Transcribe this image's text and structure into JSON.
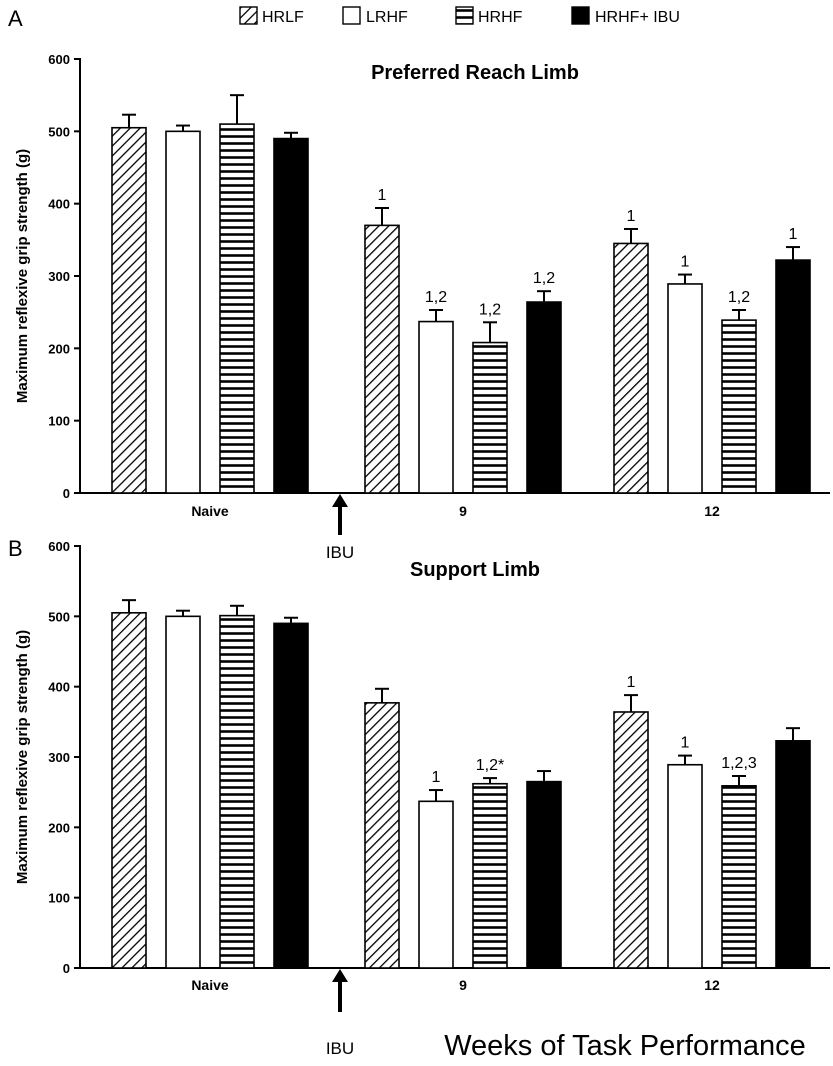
{
  "legend": [
    {
      "name": "HRLF",
      "pattern": "diagonal"
    },
    {
      "name": "LRHF",
      "pattern": "white"
    },
    {
      "name": "HRHF",
      "pattern": "horizontal"
    },
    {
      "name": "HRHF+ IBU",
      "pattern": "black"
    }
  ],
  "intervention_marker": {
    "label": "IBU"
  },
  "shared_xlabel": "Weeks of Task  Performance",
  "chart_data": [
    {
      "type": "bar",
      "panel": "A",
      "title": "Preferred Reach Limb",
      "ylabel": "Maximum reflexive grip strength (g)",
      "xlabel": "",
      "ylim": [
        0,
        600
      ],
      "yticks": [
        0,
        100,
        200,
        300,
        400,
        500,
        600
      ],
      "categories": [
        "Naive",
        "9",
        "12"
      ],
      "series": [
        {
          "name": "HRLF",
          "values": [
            505,
            370,
            345
          ],
          "errors": [
            18,
            24,
            20
          ],
          "annotations": [
            "",
            "1",
            "1"
          ]
        },
        {
          "name": "LRHF",
          "values": [
            500,
            237,
            289
          ],
          "errors": [
            8,
            16,
            13
          ],
          "annotations": [
            "",
            "1,2",
            "1"
          ]
        },
        {
          "name": "HRHF",
          "values": [
            510,
            208,
            239
          ],
          "errors": [
            40,
            28,
            14
          ],
          "annotations": [
            "",
            "1,2",
            "1,2"
          ]
        },
        {
          "name": "HRHF+ IBU",
          "values": [
            490,
            264,
            322
          ],
          "errors": [
            8,
            15,
            18
          ],
          "annotations": [
            "",
            "1,2",
            "1"
          ]
        }
      ]
    },
    {
      "type": "bar",
      "panel": "B",
      "title": "Support Limb",
      "ylabel": "Maximum reflexive grip strength (g)",
      "xlabel": "Weeks of Task  Performance",
      "ylim": [
        0,
        600
      ],
      "yticks": [
        0,
        100,
        200,
        300,
        400,
        500,
        600
      ],
      "categories": [
        "Naive",
        "9",
        "12"
      ],
      "series": [
        {
          "name": "HRLF",
          "values": [
            505,
            377,
            364
          ],
          "errors": [
            18,
            20,
            24
          ],
          "annotations": [
            "",
            "",
            "1"
          ]
        },
        {
          "name": "LRHF",
          "values": [
            500,
            237,
            289
          ],
          "errors": [
            8,
            16,
            13
          ],
          "annotations": [
            "",
            "1",
            "1"
          ]
        },
        {
          "name": "HRHF",
          "values": [
            501,
            262,
            259
          ],
          "errors": [
            14,
            8,
            14
          ],
          "annotations": [
            "",
            "1,2*",
            "1,2,3"
          ]
        },
        {
          "name": "HRHF+ IBU",
          "values": [
            490,
            265,
            323
          ],
          "errors": [
            8,
            15,
            18
          ],
          "annotations": [
            "",
            "",
            ""
          ]
        }
      ]
    }
  ]
}
